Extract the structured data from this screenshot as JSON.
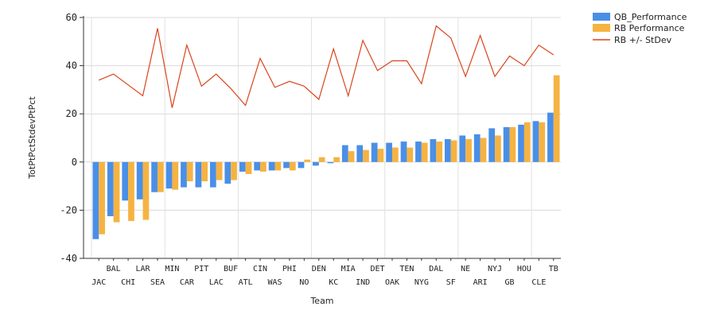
{
  "chart_data": {
    "type": "bar",
    "xlabel": "Team",
    "ylabel": "TotPtPctStdevPtPct",
    "ylim": [
      -40,
      60
    ],
    "yticks": [
      -40,
      -20,
      0,
      20,
      40,
      60
    ],
    "grid": true,
    "legend_position": "top-right",
    "categories": [
      "JAC",
      "BAL",
      "CHI",
      "LAR",
      "SEA",
      "MIN",
      "CAR",
      "PIT",
      "LAC",
      "BUF",
      "ATL",
      "CIN",
      "WAS",
      "PHI",
      "NO",
      "DEN",
      "KC",
      "MIA",
      "IND",
      "DET",
      "OAK",
      "TEN",
      "NYG",
      "DAL",
      "SF",
      "NE",
      "ARI",
      "NYJ",
      "GB",
      "HOU",
      "CLE",
      "TB"
    ],
    "series": [
      {
        "name": "QB_Performance",
        "kind": "bar",
        "color": "#4a8fe7",
        "values": [
          -32,
          -22.5,
          -16,
          -15.5,
          -12.5,
          -11,
          -10.5,
          -10.5,
          -10.5,
          -9,
          -4,
          -3.5,
          -3.5,
          -2.5,
          -2.5,
          -1.5,
          -0.5,
          7,
          7,
          8,
          8,
          8.5,
          8.5,
          9.5,
          9.5,
          11,
          11.5,
          14,
          14.5,
          15.5,
          17,
          20.5
        ]
      },
      {
        "name": "RB Performance",
        "kind": "bar",
        "color": "#f5b342",
        "values": [
          -30,
          -25,
          -24.5,
          -24,
          -12.5,
          -11.5,
          -8,
          -8,
          -7.5,
          -7.5,
          -5,
          -4,
          -3.5,
          -3.5,
          1,
          2,
          2,
          4.5,
          5,
          5.5,
          6,
          6,
          8,
          8.5,
          9,
          9.5,
          10,
          11,
          14.5,
          16.5,
          16.5,
          36
        ]
      },
      {
        "name": "RB +/- StDev",
        "kind": "line",
        "color": "#d9441c",
        "values": [
          34,
          36.5,
          32,
          27.5,
          55.5,
          22.5,
          48.5,
          31.5,
          36.5,
          30.5,
          23.5,
          43,
          31,
          33.5,
          31.5,
          26,
          47,
          27.5,
          50.5,
          38,
          42,
          42,
          32.5,
          56.5,
          51.5,
          35.5,
          52.5,
          35.5,
          44,
          40,
          48.5,
          44.5
        ]
      }
    ]
  }
}
